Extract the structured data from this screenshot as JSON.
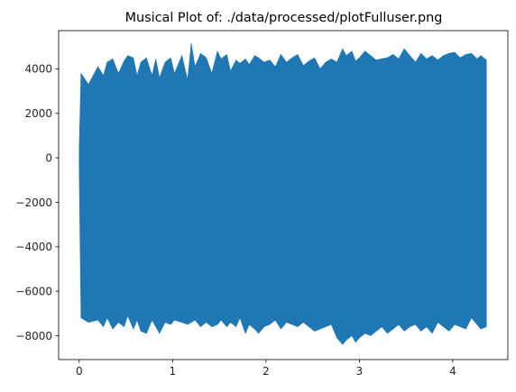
{
  "chart_data": {
    "type": "area",
    "title": "Musical Plot of: ./data/processed/plotFulluser.png",
    "xlabel": "",
    "ylabel": "",
    "xlim": [
      -0.22,
      4.59
    ],
    "ylim": [
      -9075,
      5720
    ],
    "x_ticks": [
      {
        "value": 0,
        "label": "0"
      },
      {
        "value": 1,
        "label": "1"
      },
      {
        "value": 2,
        "label": "2"
      },
      {
        "value": 3,
        "label": "3"
      },
      {
        "value": 4,
        "label": "4"
      }
    ],
    "y_ticks": [
      {
        "value": -8000,
        "label": "−8000"
      },
      {
        "value": -6000,
        "label": "−6000"
      },
      {
        "value": -4000,
        "label": "−4000"
      },
      {
        "value": -2000,
        "label": "−2000"
      },
      {
        "value": 0,
        "label": "0"
      },
      {
        "value": 2000,
        "label": "2000"
      },
      {
        "value": 4000,
        "label": "4000"
      }
    ],
    "grid": false,
    "color": "#1f77b4",
    "envelope": {
      "x": [
        0.0,
        0.02,
        0.1,
        0.2,
        0.26,
        0.3,
        0.36,
        0.42,
        0.48,
        0.52,
        0.58,
        0.62,
        0.66,
        0.72,
        0.78,
        0.82,
        0.86,
        0.92,
        0.98,
        1.02,
        1.1,
        1.16,
        1.2,
        1.24,
        1.3,
        1.36,
        1.42,
        1.48,
        1.52,
        1.58,
        1.62,
        1.68,
        1.72,
        1.78,
        1.82,
        1.88,
        1.92,
        1.98,
        2.04,
        2.1,
        2.16,
        2.22,
        2.28,
        2.34,
        2.4,
        2.46,
        2.52,
        2.58,
        2.64,
        2.7,
        2.76,
        2.82,
        2.86,
        2.92,
        2.96,
        3.0,
        3.06,
        3.12,
        3.18,
        3.24,
        3.3,
        3.36,
        3.42,
        3.48,
        3.54,
        3.6,
        3.66,
        3.72,
        3.78,
        3.84,
        3.9,
        3.96,
        4.02,
        4.08,
        4.14,
        4.2,
        4.26,
        4.3,
        4.36
      ],
      "upper": [
        400,
        3800,
        3300,
        4100,
        3700,
        4300,
        4450,
        3800,
        4350,
        4600,
        4500,
        3700,
        4300,
        4500,
        3700,
        4450,
        3600,
        4300,
        4500,
        3800,
        4600,
        3500,
        5150,
        4100,
        4700,
        4500,
        3800,
        4800,
        4450,
        4650,
        3900,
        4400,
        4250,
        4450,
        4200,
        4600,
        4500,
        4300,
        4400,
        4100,
        4650,
        4300,
        4500,
        4650,
        4150,
        4350,
        4500,
        4000,
        4300,
        4450,
        4300,
        4900,
        4600,
        4800,
        4350,
        4500,
        4800,
        4600,
        4400,
        4450,
        4500,
        4650,
        4450,
        4900,
        4600,
        4300,
        4700,
        4450,
        4600,
        4400,
        4600,
        4700,
        4750,
        4500,
        4650,
        4700,
        4450,
        4600,
        4400
      ],
      "lower": [
        -600,
        -7200,
        -7400,
        -7300,
        -7600,
        -7200,
        -7700,
        -7400,
        -7600,
        -7100,
        -7700,
        -7300,
        -7800,
        -7900,
        -7300,
        -7600,
        -7900,
        -7400,
        -7500,
        -7300,
        -7400,
        -7500,
        -7400,
        -7300,
        -7600,
        -7400,
        -7600,
        -7500,
        -7300,
        -7600,
        -7400,
        -7600,
        -7200,
        -7900,
        -7500,
        -7700,
        -7900,
        -7600,
        -7500,
        -7300,
        -7700,
        -7400,
        -7500,
        -7600,
        -7400,
        -7600,
        -7800,
        -7700,
        -7600,
        -7500,
        -8100,
        -8400,
        -8200,
        -8000,
        -8300,
        -8100,
        -7900,
        -8000,
        -7800,
        -7600,
        -7900,
        -7700,
        -7500,
        -7800,
        -7600,
        -7500,
        -7800,
        -7600,
        -7900,
        -7400,
        -7600,
        -7800,
        -7500,
        -7600,
        -7700,
        -7200,
        -7500,
        -7700,
        -7600
      ]
    }
  }
}
